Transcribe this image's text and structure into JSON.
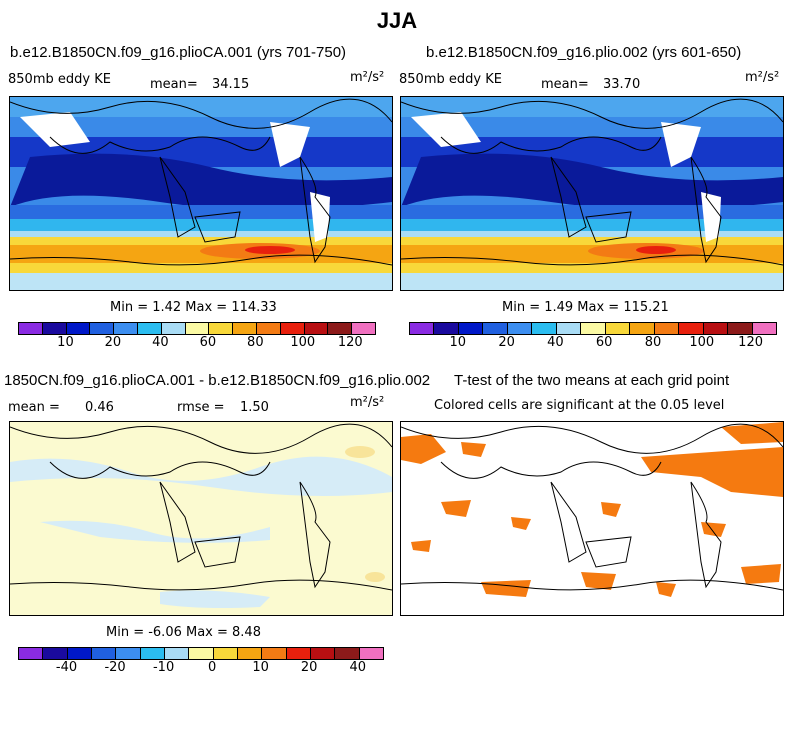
{
  "title": "JJA",
  "panels": [
    {
      "name": "b.e12.B1850CN.f09_g16.plioCA.001 (yrs 701-750)",
      "variable": "850mb eddy KE",
      "mean_label": "mean=",
      "mean_value": "34.15",
      "units": "m²/s²",
      "stats": "Min =   1.42 Max = 114.33"
    },
    {
      "name": "b.e12.B1850CN.f09_g16.plio.002 (yrs 601-650)",
      "variable": "850mb eddy KE",
      "mean_label": "mean=",
      "mean_value": "33.70",
      "units": "m²/s²",
      "stats": "Min =   1.49 Max = 115.21"
    },
    {
      "name": "1850CN.f09_g16.plioCA.001 - b.e12.B1850CN.f09_g16.plio.002",
      "mean_label": "mean =",
      "mean_value": "0.46",
      "rmse_label": "rmse =",
      "rmse_value": "1.50",
      "units": "m²/s²",
      "stats": "Min =  -6.06 Max =   8.48"
    },
    {
      "name": "T-test of the two means at each grid point",
      "subtitle": "Colored cells are significant at the 0.05 level"
    }
  ],
  "colorbar_abs": {
    "colors": [
      "#8a2be2",
      "#1a0a9e",
      "#0018c8",
      "#2060e0",
      "#3c8ef0",
      "#2bbdf0",
      "#a9dcf5",
      "#fbfaa4",
      "#f8d83a",
      "#f5a512",
      "#f37b14",
      "#e8200d",
      "#b80f12",
      "#8c1a1a",
      "#f070c0"
    ],
    "ticks": [
      "10",
      "20",
      "40",
      "60",
      "80",
      "100",
      "120"
    ]
  },
  "colorbar_diff": {
    "colors": [
      "#8a2be2",
      "#1a0a9e",
      "#0018c8",
      "#2060e0",
      "#3c8ef0",
      "#2bbdf0",
      "#a9dcf5",
      "#fbfaa4",
      "#f8d83a",
      "#f5a512",
      "#f37b14",
      "#e8200d",
      "#b80f12",
      "#8c1a1a",
      "#f070c0"
    ],
    "ticks": [
      "-40",
      "-20",
      "-10",
      "0",
      "10",
      "20",
      "40"
    ]
  },
  "significance_color": "#f57a10"
}
